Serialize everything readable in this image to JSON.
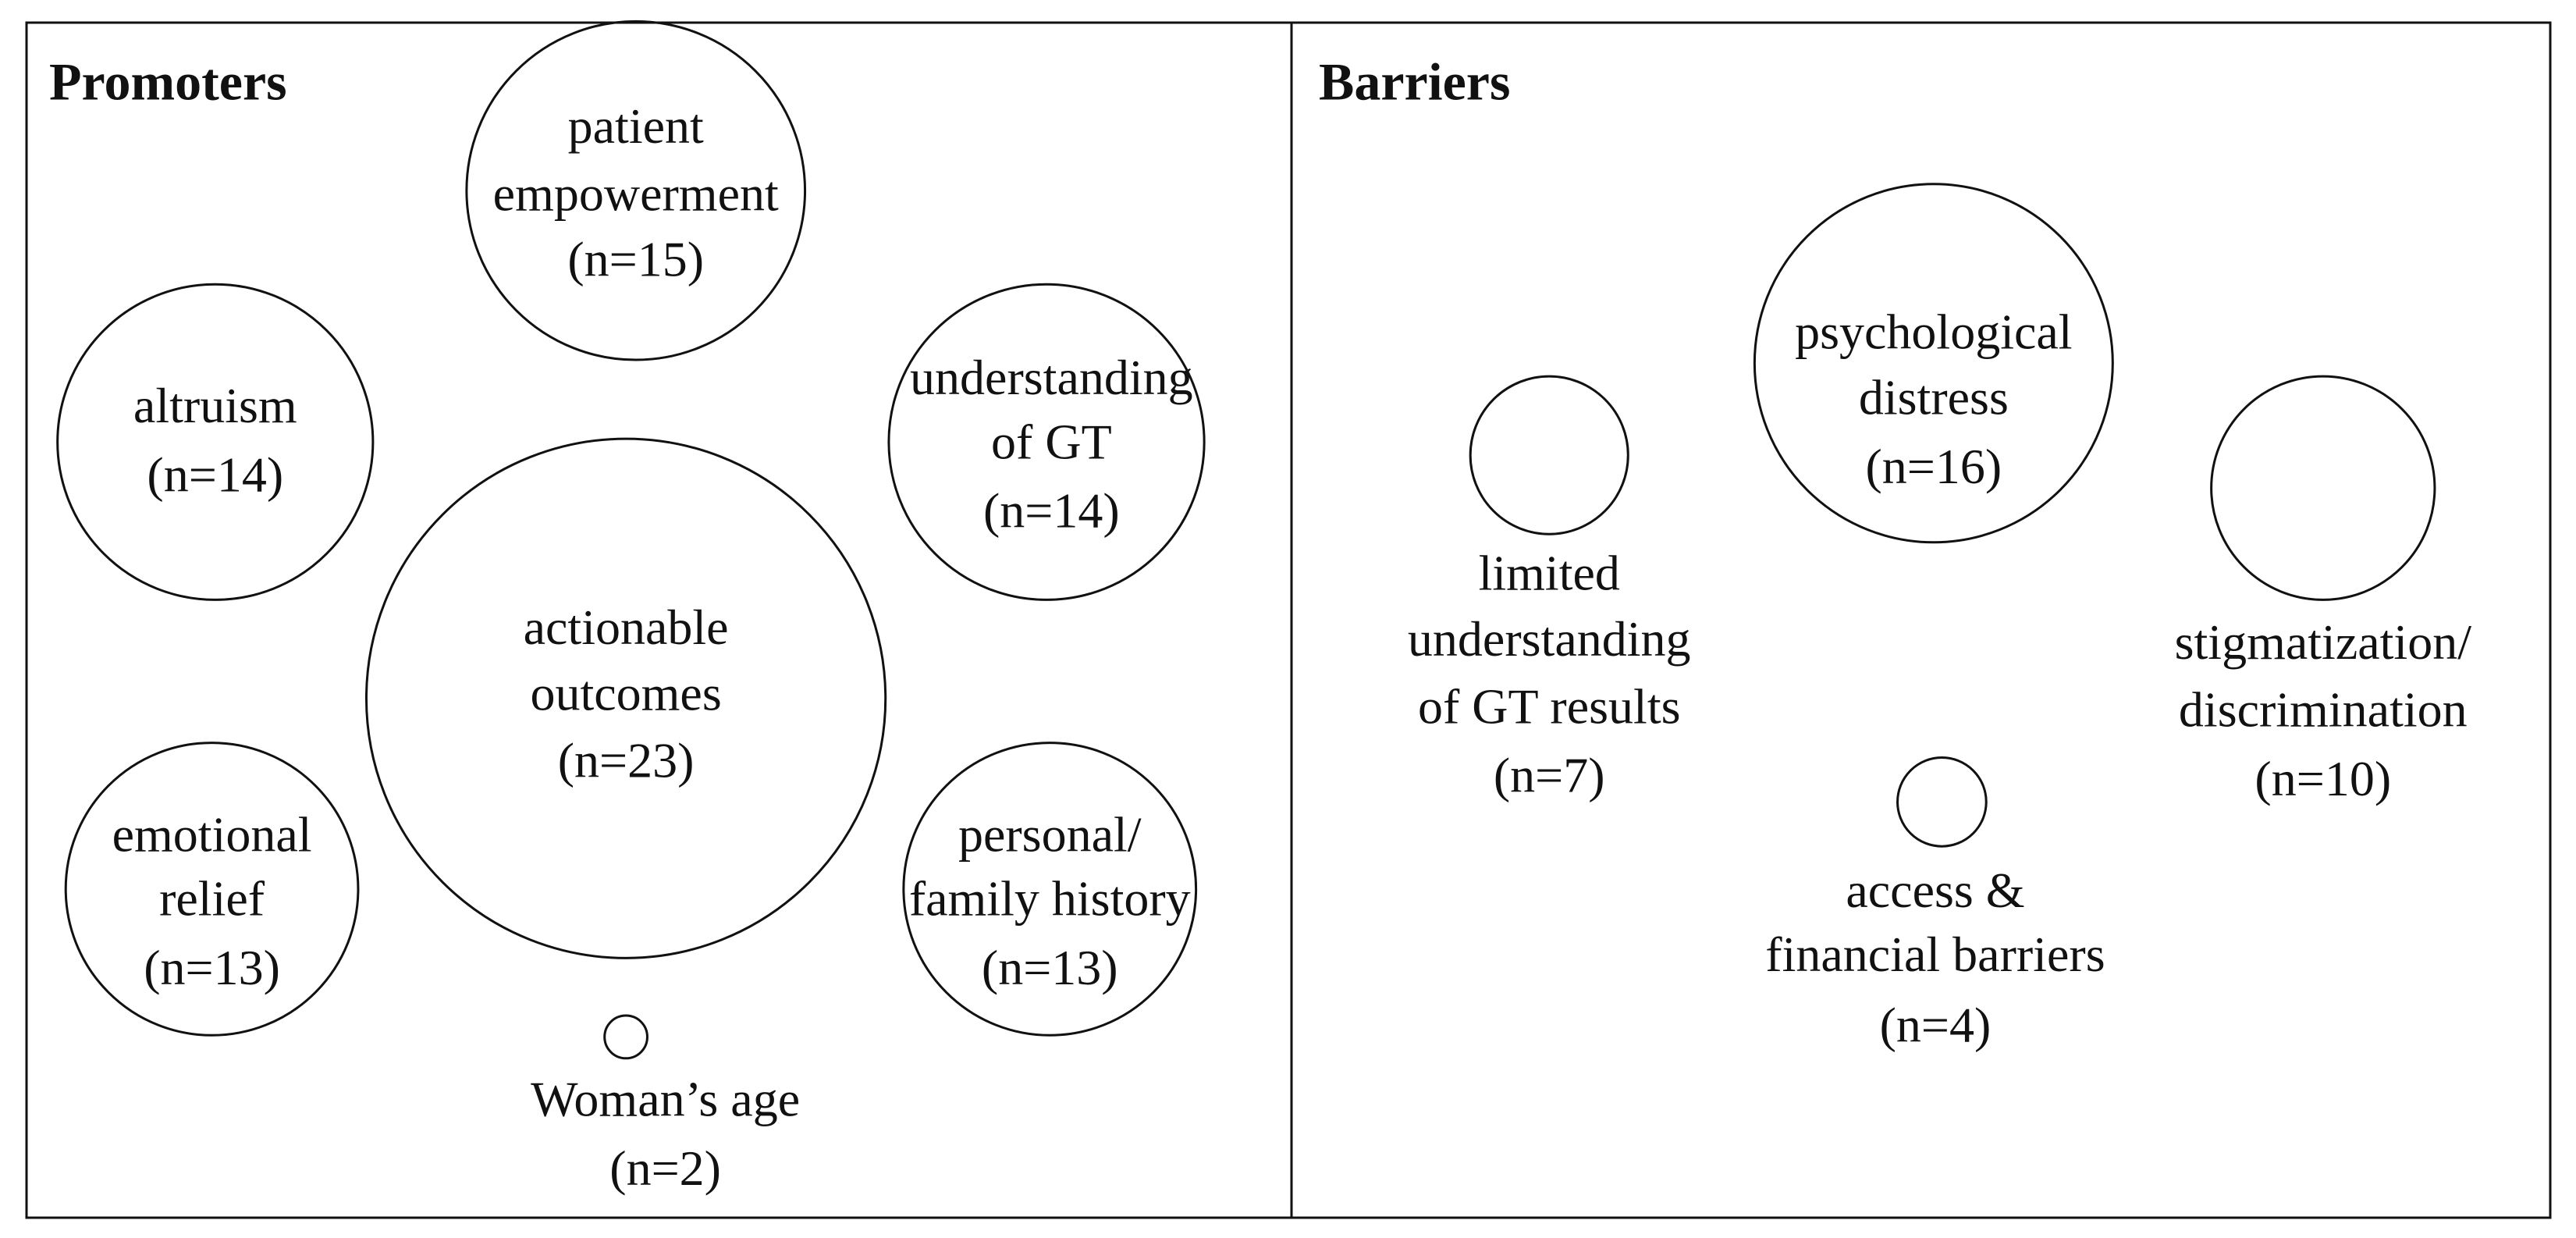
{
  "panels": [
    {
      "title": "Promoters",
      "nodes": [
        {
          "lines": [
            "patient",
            "empowerment"
          ],
          "count": "(n=15)"
        },
        {
          "lines": [
            "altruism"
          ],
          "count": "(n=14)"
        },
        {
          "lines": [
            "understanding",
            "of GT"
          ],
          "count": "(n=14)"
        },
        {
          "lines": [
            "actionable",
            "outcomes"
          ],
          "count": "(n=23)"
        },
        {
          "lines": [
            "emotional",
            "relief"
          ],
          "count": "(n=13)"
        },
        {
          "lines": [
            "personal/",
            "family history"
          ],
          "count": "(n=13)"
        },
        {
          "lines": [
            "Woman’s age"
          ],
          "count": "(n=2)"
        }
      ]
    },
    {
      "title": "Barriers",
      "nodes": [
        {
          "lines": [
            "limited",
            "understanding",
            "of GT results"
          ],
          "count": "(n=7)"
        },
        {
          "lines": [
            "psychological",
            "distress"
          ],
          "count": "(n=16)"
        },
        {
          "lines": [
            "stigmatization/",
            "discrimination"
          ],
          "count": "(n=10)"
        },
        {
          "lines": [
            "access &",
            "financial barriers"
          ],
          "count": "(n=4)"
        }
      ]
    }
  ]
}
